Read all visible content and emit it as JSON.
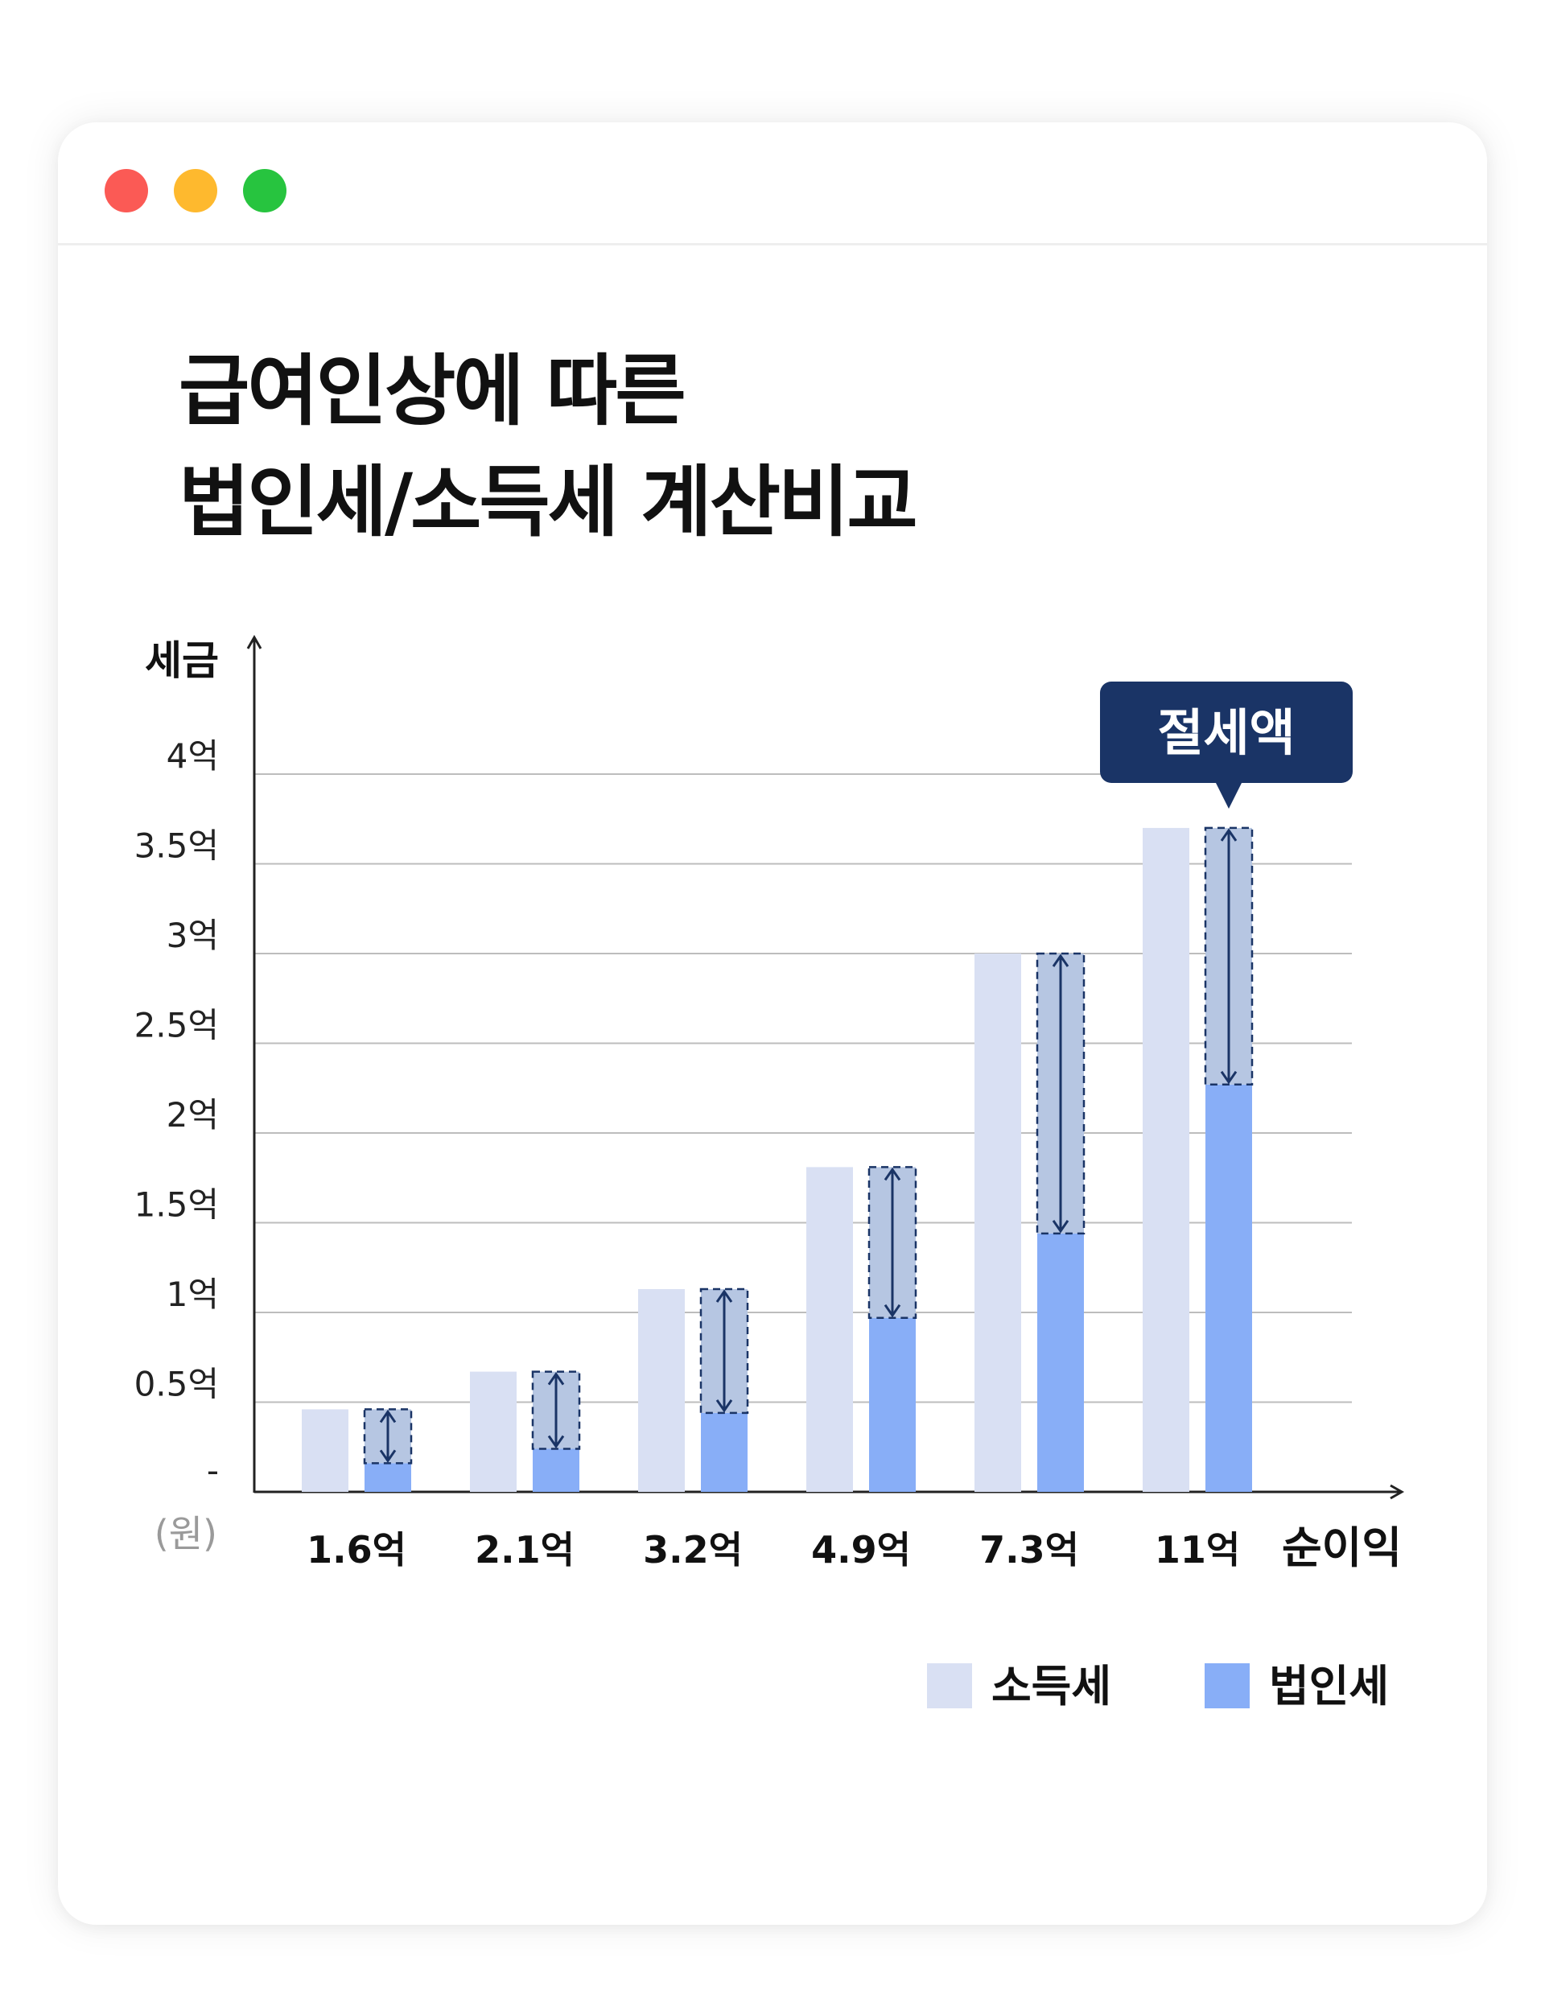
{
  "window": {
    "controls": [
      "close",
      "minimize",
      "maximize"
    ],
    "control_colors": {
      "close": "#fb5a55",
      "minimize": "#feb92e",
      "maximize": "#27c43f"
    }
  },
  "title": {
    "line1": "급여인상에 따른",
    "line2": "법인세/소득세 계산비교"
  },
  "chart_data": {
    "type": "bar",
    "ylabel": "세금",
    "xlabel": "순이익",
    "unit_label": "(원)",
    "categories": [
      "1.6억",
      "2.1억",
      "3.2억",
      "4.9억",
      "7.3억",
      "11억"
    ],
    "series": [
      {
        "name": "소득세",
        "color": "#d9e0f3",
        "values": [
          0.46,
          0.67,
          1.13,
          1.81,
          3.0,
          3.7
        ]
      },
      {
        "name": "법인세",
        "color": "#88aef7",
        "values": [
          0.16,
          0.24,
          0.44,
          0.97,
          1.44,
          2.27
        ]
      }
    ],
    "y_ticks": [
      {
        "value": 0,
        "label": "-"
      },
      {
        "value": 0.5,
        "label": "0.5억"
      },
      {
        "value": 1,
        "label": "1억"
      },
      {
        "value": 1.5,
        "label": "1.5억"
      },
      {
        "value": 2,
        "label": "2억"
      },
      {
        "value": 2.5,
        "label": "2.5억"
      },
      {
        "value": 3,
        "label": "3억"
      },
      {
        "value": 3.5,
        "label": "3.5억"
      },
      {
        "value": 4,
        "label": "4억"
      }
    ],
    "ylim": [
      0,
      4
    ],
    "grid": true,
    "legend_position": "bottom-right",
    "savings_color": "#b6c6e2",
    "arrow_color": "#1a3466",
    "callout": {
      "text": "절세액",
      "target_category": "11억",
      "color": "#1a3466"
    }
  }
}
